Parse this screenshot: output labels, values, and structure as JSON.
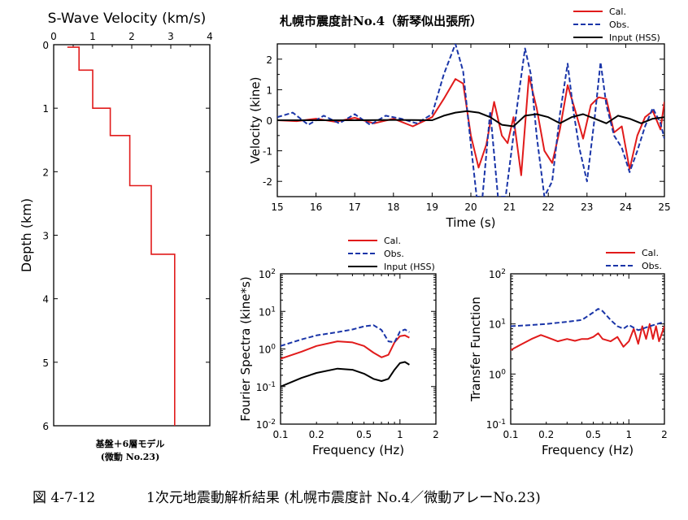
{
  "chart_data": [
    {
      "id": "vs",
      "type": "line",
      "title": "S-Wave Velocity (km/s)",
      "xlabel": "",
      "ylabel": "Depth (km)",
      "xlim": [
        0,
        4
      ],
      "ylim": [
        0,
        6
      ],
      "xticks": [
        "0",
        "1",
        "2",
        "3",
        "4"
      ],
      "yticks": [
        "0",
        "1",
        "2",
        "3",
        "4",
        "5",
        "6"
      ],
      "caption_lines": [
        "基盤＋6層モデル",
        "(微動 No.23)"
      ],
      "series": [
        {
          "color": "#e11b1b",
          "style": "solid",
          "x": [
            0.35,
            0.65,
            0.65,
            1.0,
            1.0,
            1.45,
            1.45,
            1.95,
            1.95,
            2.5,
            2.5,
            3.1,
            3.1
          ],
          "y": [
            0.04,
            0.04,
            0.4,
            0.4,
            1.0,
            1.0,
            1.43,
            1.43,
            2.22,
            2.22,
            3.3,
            3.3,
            6.0
          ]
        }
      ]
    },
    {
      "id": "vel",
      "type": "line",
      "title": "札幌市震度計No.4（新琴似出張所）",
      "xlabel": "Time (s)",
      "ylabel": "Velocity (kine)",
      "xlim": [
        15,
        25
      ],
      "ylim": [
        -2.5,
        2.5
      ],
      "xticks": [
        "15",
        "16",
        "17",
        "18",
        "19",
        "20",
        "21",
        "22",
        "23",
        "24",
        "25"
      ],
      "yticks": [
        "-2",
        "-1",
        "0",
        "1",
        "2"
      ],
      "series": [
        {
          "name": "Cal.",
          "color": "#e11b1b",
          "style": "solid",
          "x": [
            15,
            15.5,
            16,
            16.5,
            17,
            17.5,
            18,
            18.5,
            19,
            19.3,
            19.6,
            19.8,
            20,
            20.2,
            20.4,
            20.6,
            20.8,
            20.95,
            21.1,
            21.3,
            21.5,
            21.7,
            21.9,
            22.1,
            22.3,
            22.5,
            22.7,
            22.9,
            23.1,
            23.3,
            23.5,
            23.7,
            23.9,
            24.1,
            24.3,
            24.5,
            24.7,
            24.9,
            25
          ],
          "y": [
            0,
            -0.03,
            0.05,
            -0.05,
            0.08,
            -0.1,
            0.05,
            -0.2,
            0.1,
            0.7,
            1.35,
            1.2,
            -0.5,
            -1.55,
            -0.8,
            0.6,
            -0.5,
            -0.75,
            0.1,
            -1.8,
            1.45,
            0.4,
            -1.0,
            -1.4,
            -0.3,
            1.15,
            0.3,
            -0.6,
            0.5,
            0.75,
            0.7,
            -0.4,
            -0.2,
            -1.6,
            -0.5,
            0.1,
            0.3,
            -0.3,
            0.6
          ]
        },
        {
          "name": "Obs.",
          "color": "#1a35a8",
          "style": "dashed",
          "x": [
            15,
            15.4,
            15.8,
            16.2,
            16.6,
            17,
            17.4,
            17.8,
            18.2,
            18.6,
            19,
            19.3,
            19.6,
            19.8,
            20,
            20.15,
            20.3,
            20.5,
            20.7,
            20.9,
            21.05,
            21.2,
            21.4,
            21.55,
            21.7,
            21.9,
            22.1,
            22.3,
            22.5,
            22.65,
            22.8,
            23,
            23.2,
            23.35,
            23.5,
            23.7,
            23.9,
            24.1,
            24.3,
            24.5,
            24.7,
            24.9,
            25
          ],
          "y": [
            0.1,
            0.25,
            -0.15,
            0.15,
            -0.1,
            0.2,
            -0.15,
            0.15,
            0.05,
            -0.1,
            0.2,
            1.5,
            2.5,
            1.6,
            -0.8,
            -2.5,
            -2.5,
            0.3,
            -2.5,
            -2.5,
            -1.0,
            0.5,
            2.35,
            1.5,
            -0.5,
            -2.5,
            -2.0,
            0.2,
            1.85,
            0.3,
            -0.9,
            -2.0,
            0.1,
            1.9,
            0.5,
            -0.5,
            -0.9,
            -1.7,
            -1.0,
            -0.2,
            0.4,
            -0.1,
            -0.6
          ]
        },
        {
          "name": "Input (HSS)",
          "color": "#000000",
          "style": "solid",
          "x": [
            15,
            16,
            17,
            18,
            19,
            19.3,
            19.6,
            19.9,
            20.2,
            20.5,
            20.8,
            21.1,
            21.4,
            21.7,
            22,
            22.3,
            22.6,
            22.9,
            23.2,
            23.5,
            23.8,
            24.1,
            24.4,
            24.7,
            25
          ],
          "y": [
            0,
            0,
            0,
            0.01,
            0,
            0.15,
            0.25,
            0.3,
            0.25,
            0.1,
            -0.15,
            -0.2,
            0.15,
            0.2,
            0.1,
            -0.1,
            0.1,
            0.2,
            0.05,
            -0.1,
            0.15,
            0.05,
            -0.1,
            0.05,
            0.1
          ]
        }
      ]
    },
    {
      "id": "fs",
      "type": "line",
      "title": "",
      "xlabel": "Frequency (Hz)",
      "ylabel": "Fourier Spectra (kine*s)",
      "xscale": "log",
      "yscale": "log",
      "xlim": [
        0.1,
        2
      ],
      "ylim": [
        0.01,
        100
      ],
      "xticks": [
        "0.1",
        "0.2",
        "0.5",
        "1",
        "2"
      ],
      "yticks": [
        "10-2",
        "10-1",
        "100",
        "101",
        "102"
      ],
      "series": [
        {
          "name": "Cal.",
          "color": "#e11b1b",
          "style": "solid",
          "x": [
            0.1,
            0.15,
            0.2,
            0.3,
            0.4,
            0.5,
            0.6,
            0.7,
            0.8,
            0.9,
            1.0,
            1.1,
            1.2
          ],
          "y": [
            0.55,
            0.85,
            1.2,
            1.6,
            1.5,
            1.2,
            0.8,
            0.6,
            0.7,
            1.5,
            2.2,
            2.3,
            2.0
          ]
        },
        {
          "name": "Obs.",
          "color": "#1a35a8",
          "style": "dashed",
          "x": [
            0.1,
            0.15,
            0.2,
            0.3,
            0.4,
            0.5,
            0.6,
            0.7,
            0.8,
            0.9,
            1.0,
            1.1,
            1.2
          ],
          "y": [
            1.2,
            1.8,
            2.3,
            2.8,
            3.3,
            4.0,
            4.3,
            3.2,
            1.6,
            1.5,
            2.9,
            3.3,
            2.8
          ]
        },
        {
          "name": "Input (HSS)",
          "color": "#000000",
          "style": "solid",
          "x": [
            0.1,
            0.15,
            0.2,
            0.3,
            0.4,
            0.5,
            0.6,
            0.7,
            0.8,
            0.9,
            1.0,
            1.1,
            1.2
          ],
          "y": [
            0.1,
            0.17,
            0.23,
            0.3,
            0.28,
            0.22,
            0.16,
            0.14,
            0.16,
            0.28,
            0.42,
            0.45,
            0.38
          ]
        }
      ]
    },
    {
      "id": "tf",
      "type": "line",
      "title": "",
      "xlabel": "Frequency (Hz)",
      "ylabel": "Transfer Function",
      "xscale": "log",
      "yscale": "log",
      "xlim": [
        0.1,
        2
      ],
      "ylim": [
        0.1,
        100
      ],
      "xticks": [
        "0.1",
        "0.2",
        "0.5",
        "1",
        "2"
      ],
      "yticks": [
        "10-1",
        "100",
        "101",
        "102"
      ],
      "series": [
        {
          "name": "Cal.",
          "color": "#e11b1b",
          "style": "solid",
          "x": [
            0.1,
            0.12,
            0.15,
            0.18,
            0.2,
            0.25,
            0.3,
            0.35,
            0.4,
            0.45,
            0.5,
            0.55,
            0.6,
            0.7,
            0.8,
            0.9,
            1.0,
            1.1,
            1.2,
            1.3,
            1.4,
            1.5,
            1.6,
            1.7,
            1.8,
            2.0
          ],
          "y": [
            3.0,
            3.8,
            5.0,
            6.0,
            5.5,
            4.5,
            5.0,
            4.6,
            5.0,
            5.0,
            5.5,
            6.5,
            5.0,
            4.5,
            5.5,
            3.5,
            4.5,
            8.0,
            4.0,
            9.0,
            5.0,
            10.0,
            5.0,
            9.0,
            4.5,
            9.0
          ]
        },
        {
          "name": "Obs.",
          "color": "#1a35a8",
          "style": "dashed",
          "x": [
            0.1,
            0.15,
            0.2,
            0.3,
            0.4,
            0.5,
            0.55,
            0.6,
            0.7,
            0.8,
            0.9,
            1.0,
            1.2,
            1.5,
            2.0
          ],
          "y": [
            9.0,
            9.5,
            10.0,
            11.0,
            12.0,
            17.0,
            20.0,
            18.0,
            12.0,
            9.0,
            8.0,
            9.5,
            7.5,
            9.0,
            11.0
          ]
        }
      ]
    }
  ],
  "caption": {
    "figure_no": "図 4-7-12",
    "text": "1次元地震動解析結果 (札幌市震度計 No.4／微動アレーNo.23)"
  }
}
